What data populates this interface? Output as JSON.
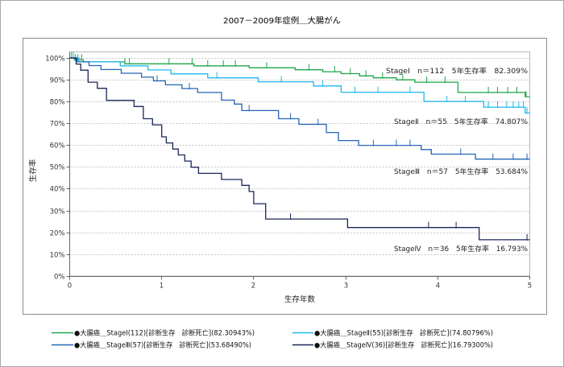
{
  "chart_data": {
    "type": "line",
    "step": true,
    "title": "2007－2009年症例＿大腸がん",
    "xlabel": "生存年数",
    "ylabel": "生存率",
    "xlim": [
      0,
      5
    ],
    "ylim": [
      0,
      100
    ],
    "x_ticks": [
      "0",
      "1",
      "2",
      "3",
      "4",
      "5"
    ],
    "y_ticks": [
      "0%",
      "10%",
      "20%",
      "30%",
      "40%",
      "50%",
      "60%",
      "70%",
      "80%",
      "90%",
      "100%"
    ],
    "grid": true,
    "legend_position": "bottom",
    "annotations": [
      "StageⅠ　n＝112　5年生存率　82.309%",
      "StageⅡ　n＝55　5年生存率　74.807%",
      "StageⅢ　n＝57　5年生存率　53.684%",
      "StageⅣ　n＝36　5年生存率　16.793%"
    ],
    "series": [
      {
        "name": "●大腸癌＿StageⅠ(112)[診断生存　診断死亡](82.30943%)",
        "color": "#1ea64a",
        "x": [
          0,
          0.05,
          0.15,
          0.6,
          1.35,
          1.95,
          2.45,
          2.75,
          2.95,
          3.15,
          3.3,
          3.55,
          3.75,
          4.22,
          4.95
        ],
        "y": [
          100,
          99.1,
          98.2,
          97.3,
          96.4,
          95.5,
          94.6,
          93.7,
          92.8,
          91.8,
          90.9,
          90.0,
          88.9,
          84.2,
          82.3
        ],
        "censored_x": [
          0.02,
          0.06,
          0.09,
          0.13,
          0.6,
          0.65,
          1.08,
          1.33,
          1.5,
          1.67,
          1.8,
          2.14,
          2.6,
          2.88,
          3.05,
          3.22,
          3.4,
          3.62,
          3.88,
          4.08,
          4.55,
          4.65,
          4.76,
          4.86,
          4.96
        ]
      },
      {
        "name": "●大腸癌＿StageⅡ(55)[診断生存　診断死亡](74.80796%)",
        "color": "#1cb8f0",
        "x": [
          0,
          0.1,
          0.55,
          0.85,
          1.1,
          1.5,
          2.05,
          2.65,
          2.95,
          3.85,
          4.5,
          4.95
        ],
        "y": [
          100,
          98.2,
          96.4,
          94.5,
          92.7,
          90.9,
          89.1,
          87.2,
          84.3,
          80.1,
          77.5,
          74.8
        ],
        "censored_x": [
          0.04,
          1.6,
          2.3,
          2.75,
          3.1,
          3.35,
          3.7,
          4.1,
          4.3,
          4.55,
          4.65,
          4.75,
          4.82,
          4.88,
          4.93,
          4.97
        ]
      },
      {
        "name": "●大腸癌＿StageⅢ(57)[診断生存　診断死亡](53.68490%)",
        "color": "#2466b8",
        "x": [
          0,
          0.08,
          0.21,
          0.34,
          0.56,
          0.78,
          0.91,
          1.04,
          1.22,
          1.39,
          1.65,
          1.79,
          1.87,
          2.27,
          2.49,
          2.79,
          2.92,
          3.14,
          3.82,
          3.93,
          4.41
        ],
        "y": [
          100,
          98.2,
          96.5,
          94.7,
          93.0,
          91.2,
          89.5,
          87.7,
          86.0,
          84.2,
          80.7,
          78.9,
          75.9,
          72.2,
          69.6,
          65.9,
          62.2,
          60.0,
          58.1,
          56.0,
          53.7
        ],
        "censored_x": [
          0.95,
          1.3,
          1.95,
          2.4,
          2.7,
          3.3,
          3.55,
          3.7,
          4.25,
          4.6,
          4.82,
          4.97
        ]
      },
      {
        "name": "●大腸癌＿StageⅣ(36)[診断生存　診断死亡](16.79300%)",
        "color": "#1b2757",
        "x": [
          0,
          0.07,
          0.12,
          0.2,
          0.3,
          0.4,
          0.7,
          0.8,
          0.9,
          1.0,
          1.05,
          1.12,
          1.18,
          1.25,
          1.32,
          1.4,
          1.65,
          1.87,
          1.95,
          2.0,
          2.13,
          3.02,
          4.45
        ],
        "y": [
          100,
          97.2,
          94.4,
          88.9,
          86.1,
          80.6,
          77.8,
          72.2,
          69.4,
          63.9,
          61.1,
          58.3,
          55.6,
          52.8,
          50.0,
          47.2,
          44.4,
          41.7,
          38.9,
          33.3,
          26.3,
          22.4,
          16.8
        ],
        "censored_x": [
          2.4,
          3.9,
          4.2,
          4.97
        ]
      }
    ]
  }
}
